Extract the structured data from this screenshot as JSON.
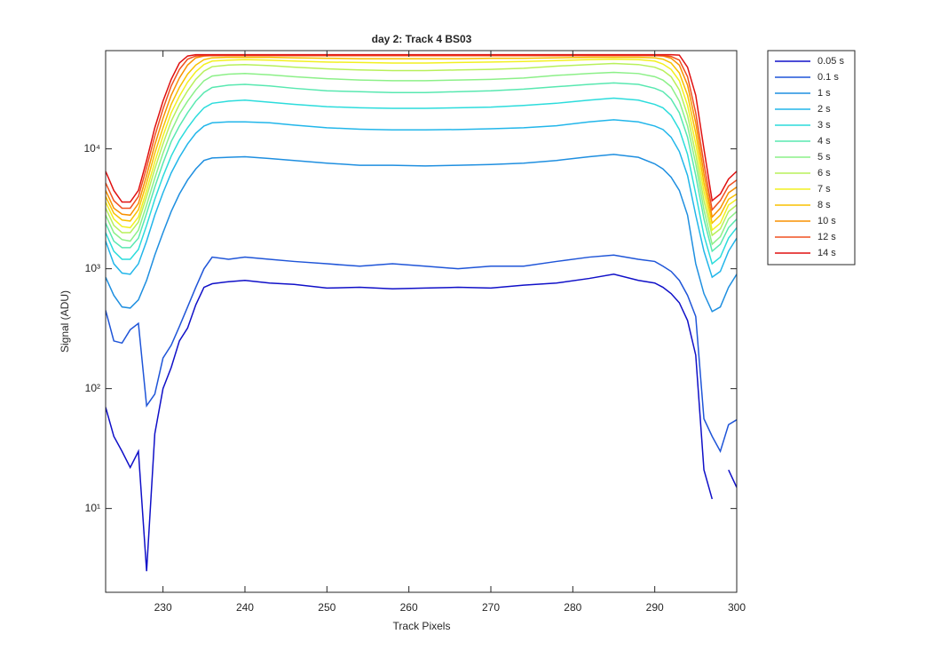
{
  "chart_data": {
    "type": "line",
    "title": "day 2: Track 4  BS03",
    "xlabel": "Track Pixels",
    "ylabel": "Signal (ADU)",
    "yscale": "log",
    "grid": false,
    "legend": "outside-right",
    "x": [
      223,
      224,
      225,
      226,
      227,
      228,
      229,
      230,
      231,
      232,
      233,
      234,
      235,
      236,
      238,
      240,
      243,
      246,
      250,
      254,
      258,
      262,
      266,
      270,
      274,
      278,
      282,
      285,
      288,
      290,
      291,
      292,
      293,
      294,
      295,
      296,
      297,
      298,
      299,
      300
    ],
    "xlim": [
      223,
      300
    ],
    "xticks": [
      230,
      240,
      250,
      260,
      270,
      280,
      290,
      300
    ],
    "ylim": [
      2,
      66000
    ],
    "yticks": [
      {
        "value": 10,
        "label": "10¹"
      },
      {
        "value": 100,
        "label": "10²"
      },
      {
        "value": 1000,
        "label": "10³"
      },
      {
        "value": 10000,
        "label": "10⁴"
      }
    ],
    "series": [
      {
        "name": "0.05 s",
        "color": "#1010c8",
        "values": [
          70,
          40,
          30,
          22,
          30,
          3,
          42,
          100,
          150,
          250,
          320,
          500,
          700,
          750,
          780,
          800,
          760,
          740,
          690,
          700,
          680,
          690,
          700,
          690,
          730,
          760,
          830,
          900,
          800,
          760,
          700,
          620,
          520,
          370,
          190,
          21,
          12,
          null,
          21,
          15
        ]
      },
      {
        "name": "0.1 s",
        "color": "#1f55d8",
        "values": [
          450,
          250,
          240,
          310,
          350,
          72,
          90,
          180,
          230,
          330,
          480,
          700,
          1000,
          1250,
          1200,
          1250,
          1200,
          1150,
          1100,
          1050,
          1100,
          1050,
          1000,
          1050,
          1050,
          1150,
          1250,
          1300,
          1200,
          1150,
          1050,
          950,
          800,
          600,
          400,
          56,
          40,
          30,
          50,
          55
        ]
      },
      {
        "name": "1 s",
        "color": "#1f8fe0",
        "values": [
          850,
          600,
          480,
          470,
          550,
          800,
          1300,
          2000,
          3000,
          4200,
          5500,
          6800,
          8000,
          8400,
          8500,
          8600,
          8300,
          8000,
          7600,
          7300,
          7300,
          7200,
          7300,
          7400,
          7600,
          8000,
          8600,
          9000,
          8500,
          7500,
          6800,
          5800,
          4500,
          2800,
          1100,
          620,
          440,
          480,
          700,
          900
        ]
      },
      {
        "name": "2 s",
        "color": "#22b6ea",
        "values": [
          1700,
          1100,
          920,
          900,
          1100,
          1700,
          2800,
          4300,
          6300,
          8500,
          11000,
          13500,
          15500,
          16500,
          16800,
          16800,
          16500,
          15800,
          15000,
          14600,
          14400,
          14400,
          14500,
          14700,
          15000,
          15600,
          16800,
          17500,
          16800,
          15500,
          14500,
          12500,
          9500,
          6000,
          2800,
          1400,
          850,
          950,
          1400,
          1800
        ]
      },
      {
        "name": "3 s",
        "color": "#2cdcdc",
        "values": [
          2000,
          1400,
          1200,
          1200,
          1450,
          2300,
          3800,
          5900,
          8700,
          11800,
          15000,
          18500,
          22000,
          24000,
          25000,
          25500,
          24500,
          23500,
          22500,
          22000,
          21800,
          21800,
          22000,
          22300,
          23000,
          24000,
          25500,
          26500,
          25500,
          23500,
          22000,
          19000,
          14500,
          9000,
          4200,
          1900,
          1100,
          1250,
          1800,
          2200
        ]
      },
      {
        "name": "4 s",
        "color": "#58e8b0",
        "values": [
          2400,
          1700,
          1500,
          1500,
          1800,
          2900,
          4800,
          7600,
          11500,
          15500,
          20000,
          25000,
          29500,
          32500,
          34000,
          34500,
          33500,
          32000,
          30500,
          30000,
          29500,
          29500,
          30000,
          30500,
          31500,
          33000,
          34500,
          35500,
          34500,
          32000,
          30000,
          26000,
          20000,
          12500,
          6000,
          2600,
          1400,
          1600,
          2200,
          2600
        ]
      },
      {
        "name": "5 s",
        "color": "#8cf088",
        "values": [
          2800,
          2000,
          1750,
          1700,
          2100,
          3400,
          5700,
          9200,
          14000,
          19500,
          25000,
          31000,
          37000,
          40500,
          42000,
          42500,
          41500,
          40000,
          38500,
          37500,
          37000,
          37000,
          37500,
          38000,
          39000,
          41000,
          42500,
          43500,
          42500,
          40000,
          37500,
          33000,
          25000,
          15500,
          7500,
          3100,
          1600,
          1850,
          2600,
          3000
        ]
      },
      {
        "name": "6 s",
        "color": "#b8f05a",
        "values": [
          3200,
          2300,
          2000,
          2000,
          2450,
          4000,
          6800,
          11000,
          17000,
          23500,
          30500,
          38000,
          44500,
          48500,
          50000,
          50500,
          49500,
          48000,
          46500,
          45500,
          45000,
          45000,
          45500,
          46000,
          47000,
          49000,
          50500,
          51500,
          50500,
          48000,
          45000,
          40000,
          31000,
          19000,
          9000,
          3700,
          1900,
          2150,
          3000,
          3400
        ]
      },
      {
        "name": "7 s",
        "color": "#f2f020",
        "values": [
          3600,
          2600,
          2250,
          2200,
          2700,
          4500,
          7800,
          12800,
          20000,
          27500,
          36000,
          44000,
          50500,
          54000,
          55000,
          55500,
          55000,
          54000,
          53000,
          52500,
          52000,
          52000,
          52500,
          53000,
          53500,
          54500,
          55500,
          56000,
          55500,
          54000,
          51000,
          46000,
          37000,
          23000,
          11000,
          4400,
          2100,
          2400,
          3400,
          3800
        ]
      },
      {
        "name": "8 s",
        "color": "#f8c000",
        "values": [
          4000,
          2900,
          2550,
          2500,
          3100,
          5200,
          9200,
          15000,
          23500,
          32500,
          42000,
          50000,
          55500,
          57500,
          58000,
          58000,
          58000,
          57500,
          57000,
          56500,
          56500,
          56500,
          56500,
          57000,
          57000,
          57500,
          58000,
          58000,
          58000,
          57500,
          56000,
          52000,
          43000,
          28000,
          13500,
          5200,
          2400,
          2800,
          3800,
          4200
        ]
      },
      {
        "name": "10 s",
        "color": "#f89000",
        "values": [
          4500,
          3200,
          2850,
          2800,
          3500,
          6000,
          10800,
          18000,
          28000,
          39000,
          50000,
          57500,
          59500,
          60000,
          60000,
          60000,
          60000,
          60000,
          60000,
          60000,
          60000,
          60000,
          60000,
          60000,
          60000,
          60000,
          60000,
          60000,
          60000,
          60000,
          59500,
          57000,
          50000,
          34000,
          16500,
          6200,
          2700,
          3200,
          4300,
          4800
        ]
      },
      {
        "name": "12 s",
        "color": "#f05020",
        "values": [
          5200,
          3700,
          3200,
          3200,
          4000,
          7000,
          12800,
          21500,
          33500,
          46000,
          56000,
          59500,
          60000,
          60000,
          60000,
          60000,
          60000,
          60000,
          60000,
          60000,
          60000,
          60000,
          60000,
          60000,
          60000,
          60000,
          60000,
          60000,
          60000,
          60000,
          60000,
          59000,
          55000,
          40000,
          20000,
          7500,
          3100,
          3700,
          4900,
          5500
        ]
      },
      {
        "name": "14 s",
        "color": "#e01010",
        "values": [
          6500,
          4500,
          3600,
          3600,
          4500,
          8000,
          15000,
          25000,
          38000,
          52000,
          59500,
          61000,
          61000,
          61000,
          61000,
          61000,
          61000,
          61000,
          61000,
          61000,
          61000,
          61000,
          61000,
          61000,
          61000,
          61000,
          61000,
          61000,
          61000,
          61000,
          61000,
          61000,
          60500,
          48000,
          28000,
          10000,
          3700,
          4200,
          5600,
          6500
        ]
      }
    ]
  }
}
